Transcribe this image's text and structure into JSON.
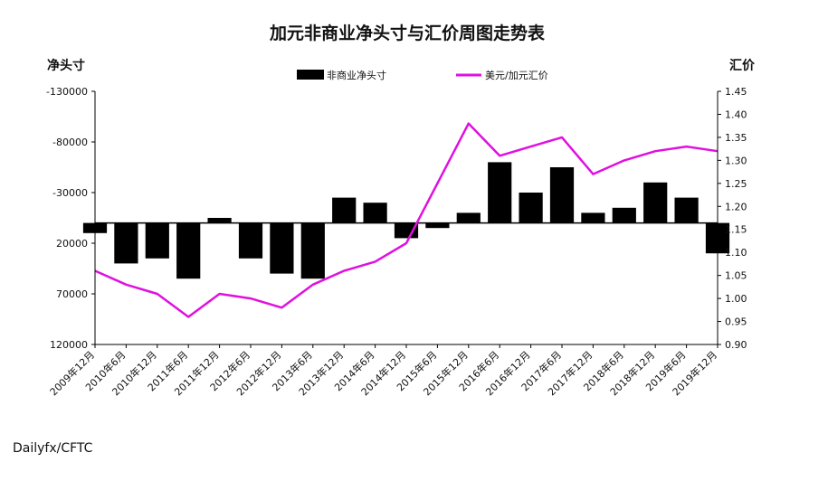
{
  "chart_data": {
    "type": "bar+line",
    "title": "加元非商业净头寸与汇价周图走势表",
    "left_axis_title": "净头寸",
    "right_axis_title": "汇价",
    "source": "Dailyfx/CFTC",
    "left_axis": {
      "ticks": [
        -130000,
        -80000,
        -30000,
        20000,
        70000,
        120000
      ],
      "ylim": [
        -130000,
        120000
      ],
      "inverted": true
    },
    "right_axis": {
      "ticks": [
        "1.45",
        "1.40",
        "1.35",
        "1.30",
        "1.25",
        "1.20",
        "1.15",
        "1.10",
        "1.05",
        "1.00",
        "0.95",
        "0.90"
      ],
      "ylim": [
        0.9,
        1.45
      ]
    },
    "x_tick_labels": [
      "2009年12月",
      "2010年6月",
      "2010年12月",
      "2011年6月",
      "2011年12月",
      "2012年6月",
      "2012年12月",
      "2013年6月",
      "2013年12月",
      "2014年6月",
      "2014年12月",
      "2015年6月",
      "2015年12月",
      "2016年6月",
      "2016年12月",
      "2017年6月",
      "2017年12月",
      "2018年6月",
      "2018年12月",
      "2019年6月",
      "2019年12月"
    ],
    "series": [
      {
        "name": "非商业净头寸",
        "kind": "bar",
        "color": "#000000",
        "x": [
          0,
          1,
          2,
          3,
          4,
          5,
          6,
          7,
          8,
          9,
          10,
          11,
          12,
          13,
          14,
          15,
          16,
          17,
          18,
          19,
          20
        ],
        "values": [
          10000,
          40000,
          35000,
          55000,
          -5000,
          35000,
          50000,
          55000,
          -25000,
          -20000,
          15000,
          5000,
          -10000,
          -60000,
          -30000,
          -55000,
          -10000,
          -15000,
          -40000,
          -25000,
          30000
        ]
      },
      {
        "name": "美元/加元汇价",
        "kind": "line",
        "color": "#e010e0",
        "x": [
          0,
          1,
          2,
          3,
          4,
          5,
          6,
          7,
          8,
          9,
          10,
          11,
          12,
          13,
          14,
          15,
          16,
          17,
          18,
          19,
          20
        ],
        "values": [
          1.06,
          1.03,
          1.01,
          0.96,
          1.01,
          1.0,
          0.98,
          1.03,
          1.06,
          1.08,
          1.12,
          1.25,
          1.38,
          1.31,
          1.33,
          1.35,
          1.27,
          1.3,
          1.32,
          1.33,
          1.32
        ]
      }
    ]
  }
}
